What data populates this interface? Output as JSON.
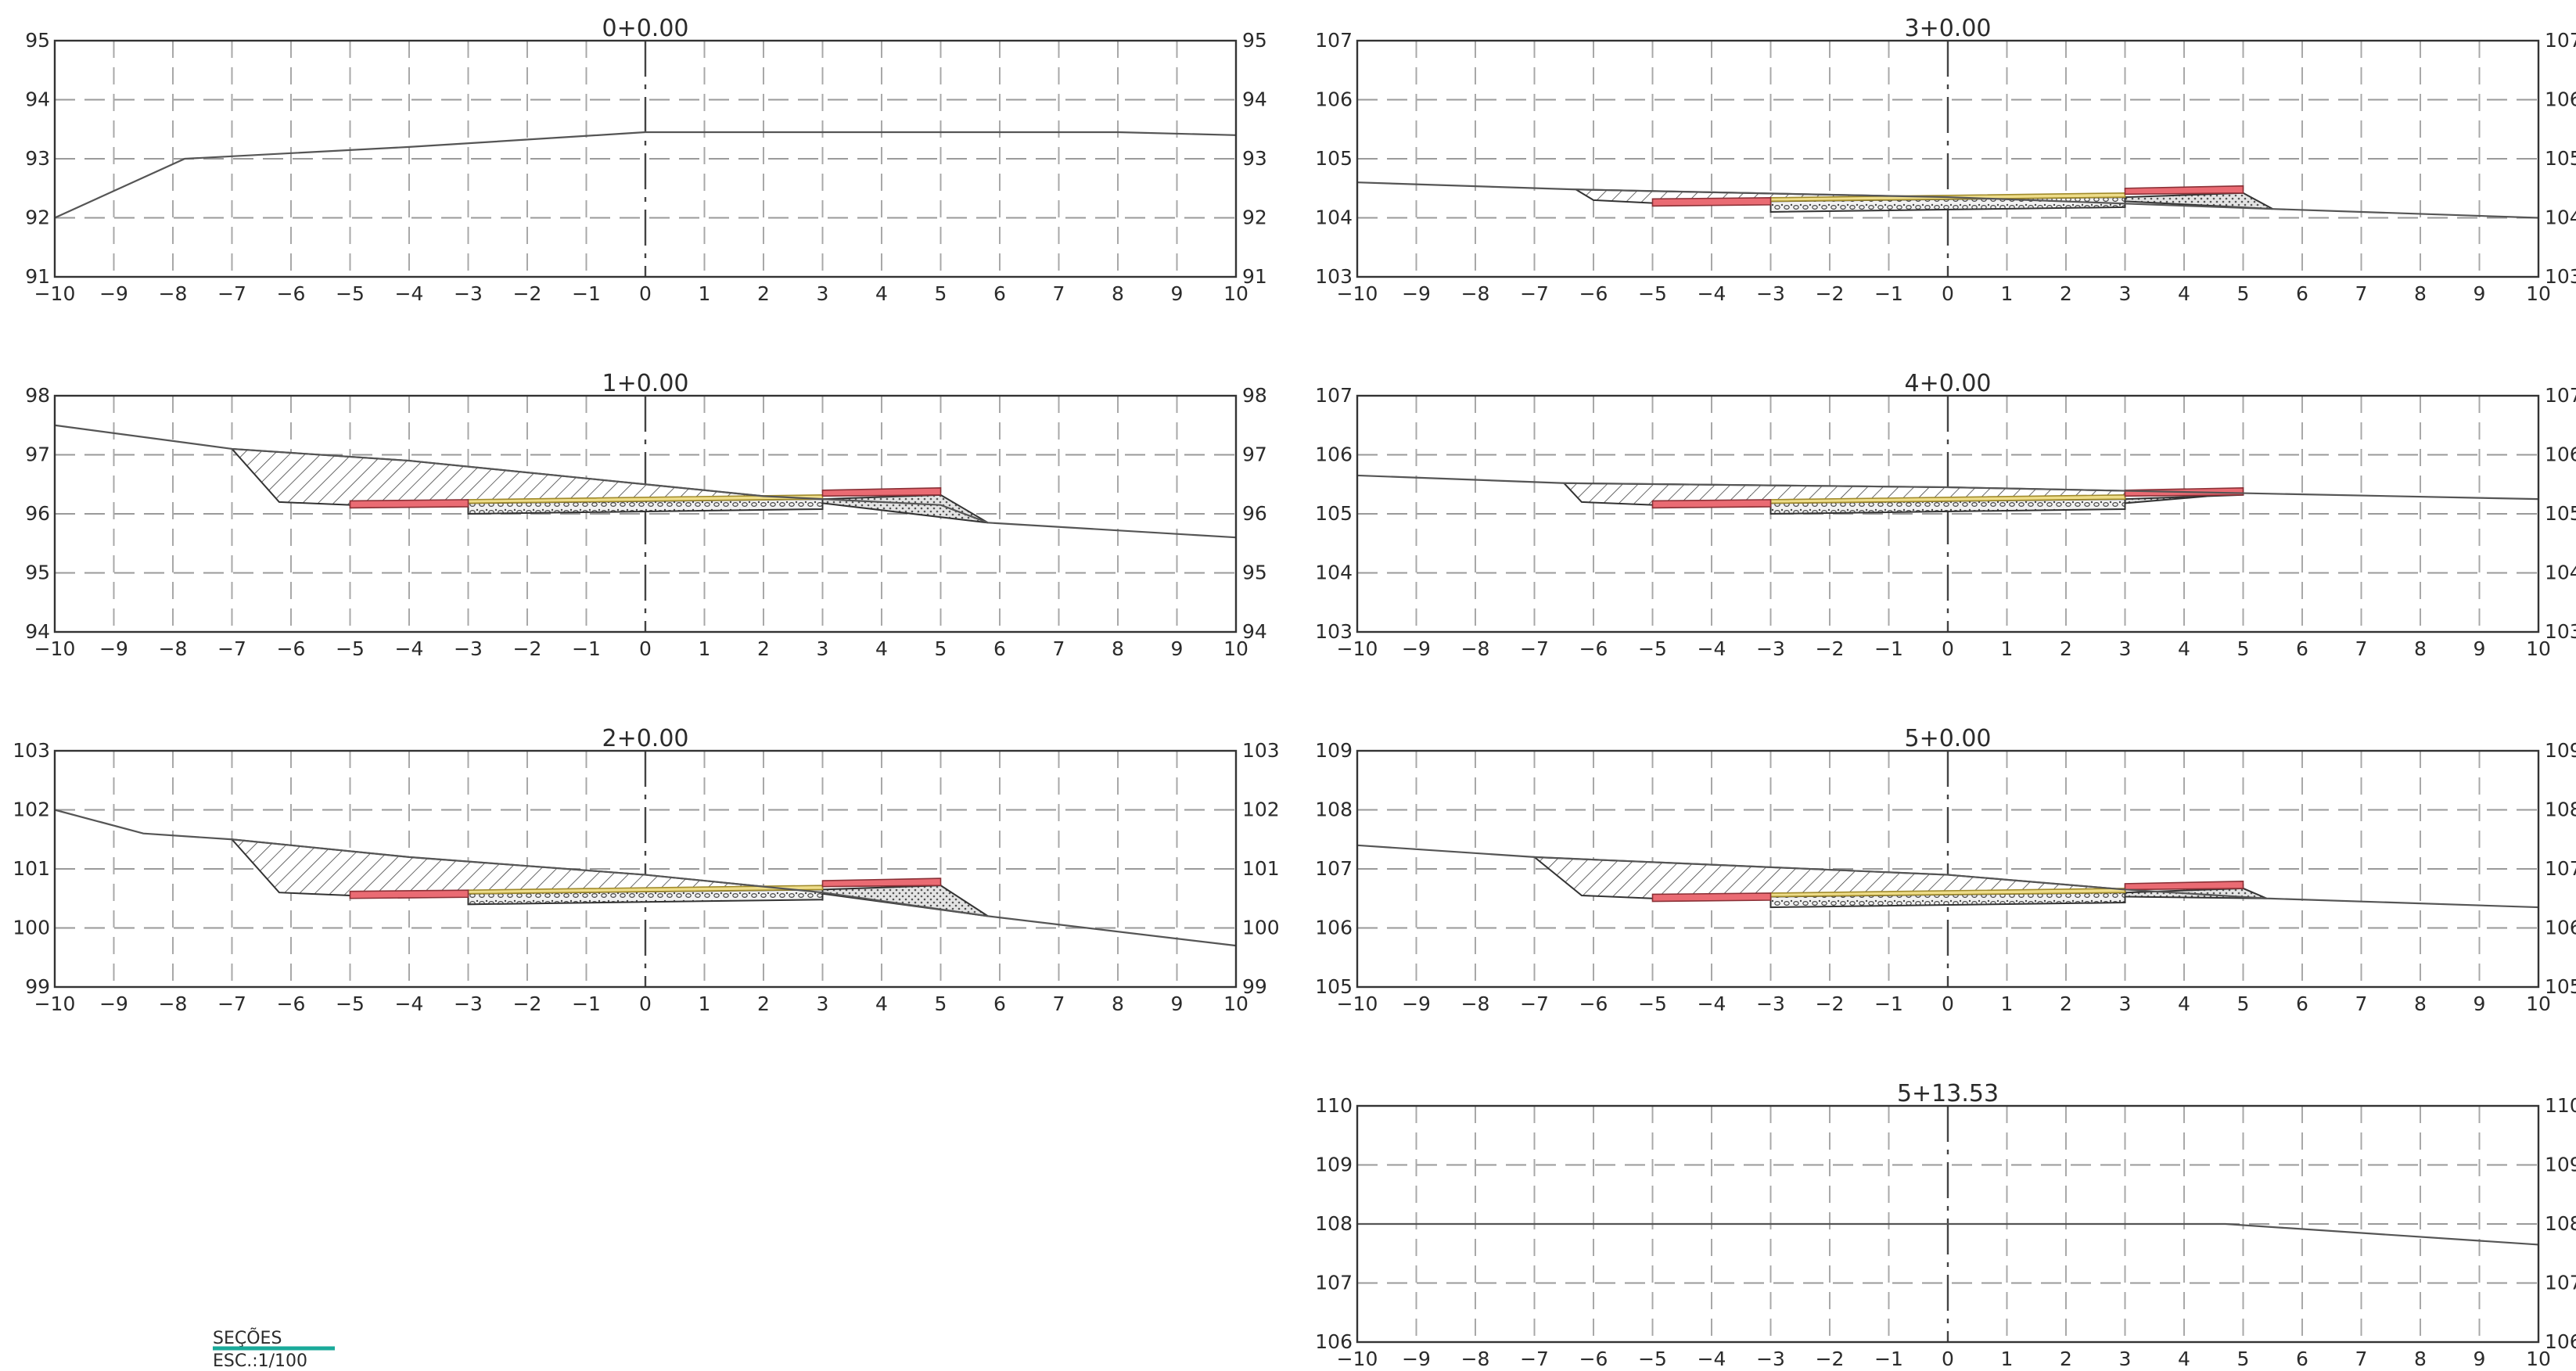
{
  "sections": [
    {
      "title": "0+0.00",
      "column": 0,
      "row": 0,
      "ymin": 91,
      "ymax": 95,
      "yticks": [
        "91",
        "92",
        "93",
        "94",
        "95"
      ],
      "xticks": [
        "−10",
        "−9",
        "−8",
        "−7",
        "−6",
        "−5",
        "−4",
        "−3",
        "−2",
        "−1",
        "0",
        "1",
        "2",
        "3",
        "4",
        "5",
        "6",
        "7",
        "8",
        "9",
        "10"
      ],
      "terrain": [
        [
          -10,
          92.0
        ],
        [
          -7.8,
          93.0
        ],
        [
          -4,
          93.2
        ],
        [
          0,
          93.45
        ],
        [
          8,
          93.45
        ],
        [
          10,
          93.4
        ]
      ],
      "template": null
    },
    {
      "title": "1+0.00",
      "column": 0,
      "row": 1,
      "ymin": 94,
      "ymax": 98,
      "yticks": [
        "94",
        "95",
        "96",
        "97",
        "98"
      ],
      "xticks": [
        "−10",
        "−9",
        "−8",
        "−7",
        "−6",
        "−5",
        "−4",
        "−3",
        "−2",
        "−1",
        "0",
        "1",
        "2",
        "3",
        "4",
        "5",
        "6",
        "7",
        "8",
        "9",
        "10"
      ],
      "terrain": [
        [
          -10,
          97.5
        ],
        [
          -7,
          97.1
        ],
        [
          -4,
          96.9
        ],
        [
          0,
          96.5
        ],
        [
          2,
          96.3
        ],
        [
          5,
          96.15
        ],
        [
          5.8,
          95.85
        ],
        [
          10,
          95.6
        ]
      ],
      "template": {
        "edge_left": -7.0,
        "ditch": -6.2,
        "grade": 96.2,
        "shoulder_right": 5.8,
        "ground_right": 95.85
      }
    },
    {
      "title": "2+0.00",
      "column": 0,
      "row": 2,
      "ymin": 99,
      "ymax": 103,
      "yticks": [
        "99",
        "100",
        "101",
        "102",
        "103"
      ],
      "xticks": [
        "−10",
        "−9",
        "−8",
        "−7",
        "−6",
        "−5",
        "−4",
        "−3",
        "−2",
        "−1",
        "0",
        "1",
        "2",
        "3",
        "4",
        "5",
        "6",
        "7",
        "8",
        "9",
        "10"
      ],
      "terrain": [
        [
          -10,
          102.0
        ],
        [
          -8.5,
          101.6
        ],
        [
          -7,
          101.5
        ],
        [
          -4,
          101.2
        ],
        [
          0,
          100.9
        ],
        [
          3,
          100.6
        ],
        [
          5.8,
          100.2
        ],
        [
          10,
          99.7
        ]
      ],
      "template": {
        "edge_left": -7.0,
        "ditch": -6.2,
        "grade": 100.6,
        "shoulder_right": 5.8,
        "ground_right": 100.2
      }
    },
    {
      "title": "3+0.00",
      "column": 1,
      "row": 0,
      "ymin": 103,
      "ymax": 107,
      "yticks": [
        "103",
        "104",
        "105",
        "106",
        "107"
      ],
      "xticks": [
        "−10",
        "−9",
        "−8",
        "−7",
        "−6",
        "−5",
        "−4",
        "−3",
        "−2",
        "−1",
        "0",
        "1",
        "2",
        "3",
        "4",
        "5",
        "6",
        "7",
        "8",
        "9",
        "10"
      ],
      "terrain": [
        [
          -10,
          104.6
        ],
        [
          -6.3,
          104.48
        ],
        [
          0,
          104.35
        ],
        [
          5.5,
          104.15
        ],
        [
          10,
          104.0
        ]
      ],
      "template": {
        "edge_left": -6.3,
        "ditch": -6.0,
        "grade": 104.3,
        "shoulder_right": 5.5,
        "ground_right": 104.15
      }
    },
    {
      "title": "4+0.00",
      "column": 1,
      "row": 1,
      "ymin": 103,
      "ymax": 107,
      "yticks": [
        "103",
        "104",
        "105",
        "106",
        "107"
      ],
      "xticks": [
        "−10",
        "−9",
        "−8",
        "−7",
        "−6",
        "−5",
        "−4",
        "−3",
        "−2",
        "−1",
        "0",
        "1",
        "2",
        "3",
        "4",
        "5",
        "6",
        "7",
        "8",
        "9",
        "10"
      ],
      "terrain": [
        [
          -10,
          105.65
        ],
        [
          -6.5,
          105.52
        ],
        [
          0,
          105.45
        ],
        [
          5,
          105.35
        ],
        [
          10,
          105.25
        ]
      ],
      "template": {
        "edge_left": -6.5,
        "ditch": -6.2,
        "grade": 105.2,
        "shoulder_right": 5.0,
        "ground_right": 105.35
      }
    },
    {
      "title": "5+0.00",
      "column": 1,
      "row": 2,
      "ymin": 105,
      "ymax": 109,
      "yticks": [
        "105",
        "106",
        "107",
        "108",
        "109"
      ],
      "xticks": [
        "−10",
        "−9",
        "−8",
        "−7",
        "−6",
        "−5",
        "−4",
        "−3",
        "−2",
        "−1",
        "0",
        "1",
        "2",
        "3",
        "4",
        "5",
        "6",
        "7",
        "8",
        "9",
        "10"
      ],
      "terrain": [
        [
          -10,
          107.4
        ],
        [
          -7,
          107.2
        ],
        [
          0,
          106.9
        ],
        [
          3,
          106.65
        ],
        [
          5.4,
          106.5
        ],
        [
          10,
          106.35
        ]
      ],
      "template": {
        "edge_left": -7.0,
        "ditch": -6.2,
        "grade": 106.55,
        "shoulder_right": 5.4,
        "ground_right": 106.5
      }
    },
    {
      "title": "5+13.53",
      "column": 1,
      "row": 3,
      "ymin": 106,
      "ymax": 110,
      "yticks": [
        "106",
        "107",
        "108",
        "109",
        "110"
      ],
      "xticks": [
        "−10",
        "−9",
        "−8",
        "−7",
        "−6",
        "−5",
        "−4",
        "−3",
        "−2",
        "−1",
        "0",
        "1",
        "2",
        "3",
        "4",
        "5",
        "6",
        "7",
        "8",
        "9",
        "10"
      ],
      "terrain": [
        [
          -10,
          108.0
        ],
        [
          4.7,
          108.0
        ],
        [
          10,
          107.65
        ]
      ],
      "template": null
    }
  ],
  "legend": {
    "title": "SEÇÕES",
    "scale": "ESC.:1/100",
    "accent": "#1aaa9a"
  },
  "colors": {
    "sidewalk": "#ea6b73",
    "pavement": "#eedd8a",
    "frame": "#333333",
    "grid": "#9a9a9a"
  }
}
